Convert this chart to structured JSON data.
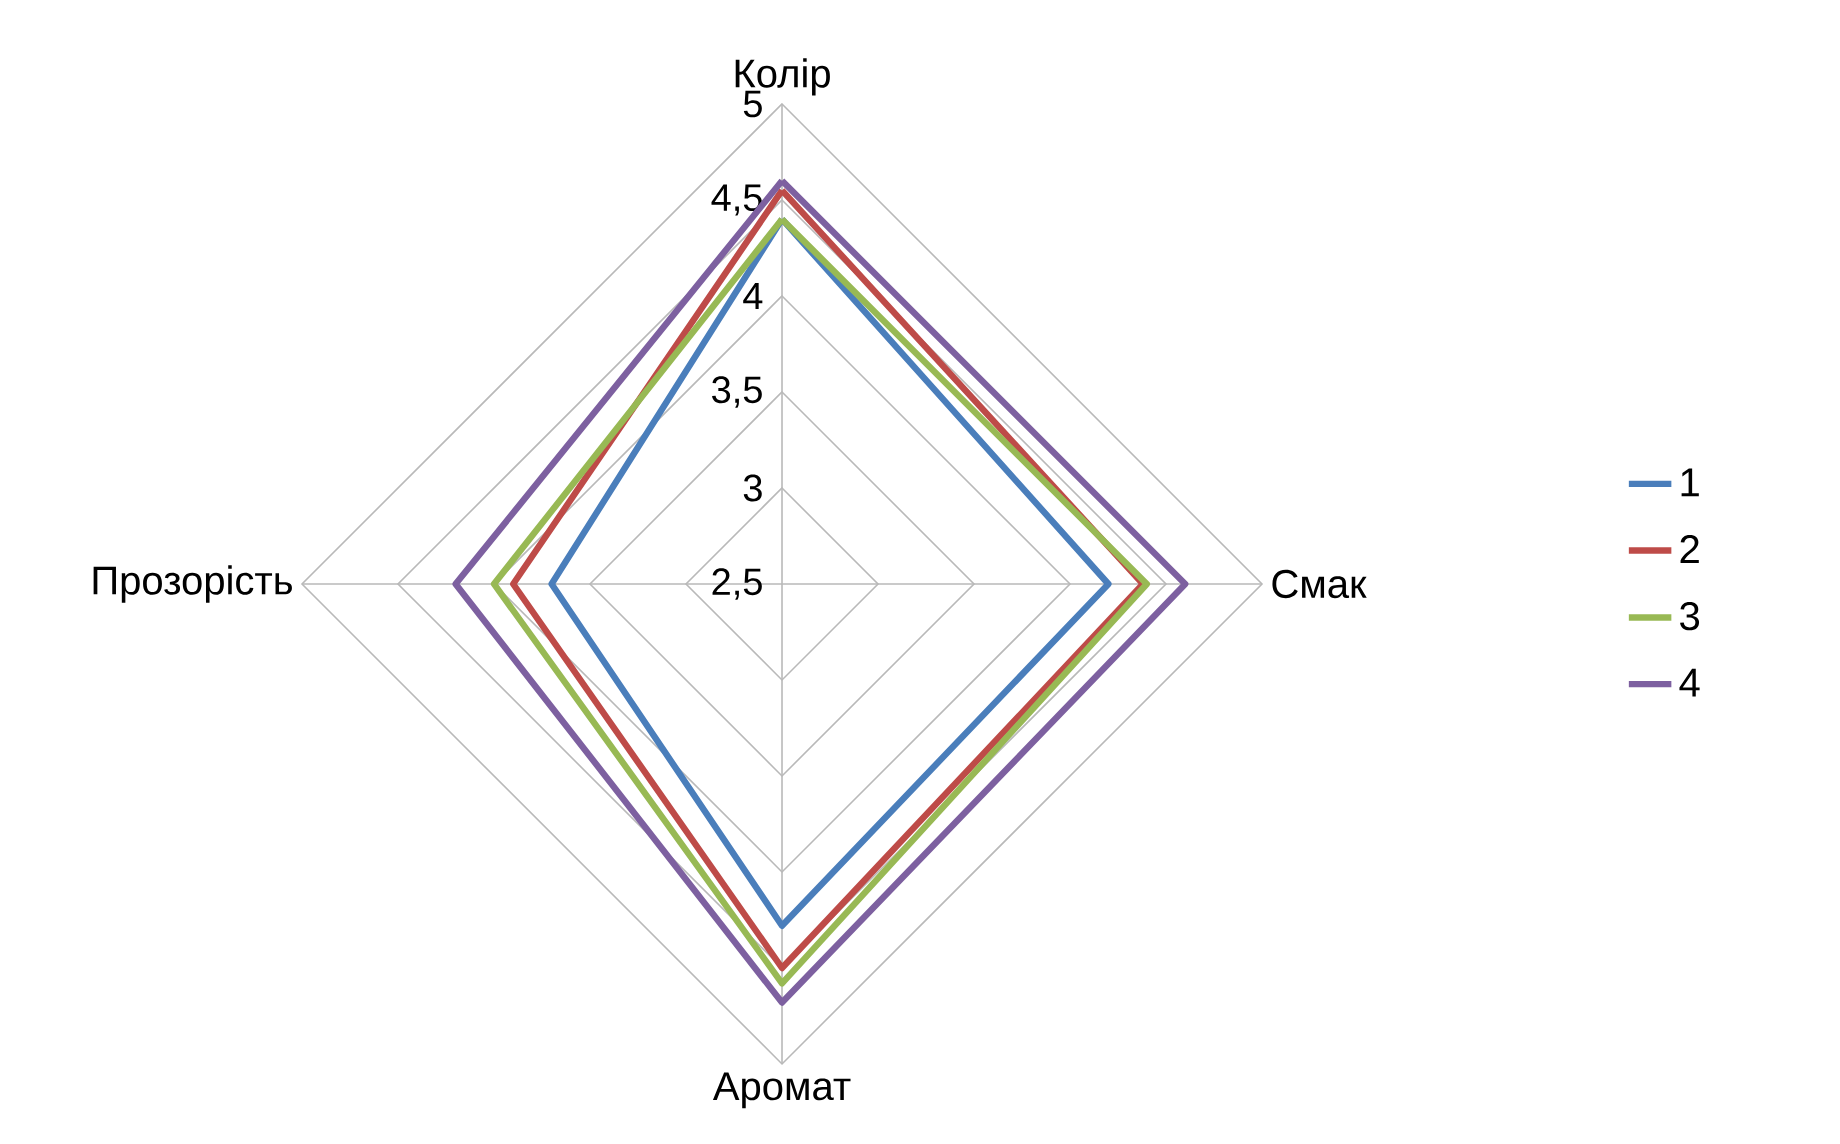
{
  "chart_data": {
    "type": "radar",
    "categories": [
      "Колір",
      "Смак",
      "Аромат",
      "Прозорість"
    ],
    "ylim": [
      2.5,
      5
    ],
    "yticks": [
      {
        "value": 2.5,
        "label": "2,5"
      },
      3,
      {
        "value": 3.5,
        "label": "3,5"
      },
      4,
      {
        "value": 4.5,
        "label": "4,5"
      },
      5
    ],
    "grid": true,
    "legend": "right",
    "series": [
      {
        "name": "1",
        "color": "#4a7ebb",
        "values": [
          4.4,
          4.2,
          4.28,
          3.7
        ]
      },
      {
        "name": "2",
        "color": "#be4b48",
        "values": [
          4.55,
          4.38,
          4.5,
          3.9
        ]
      },
      {
        "name": "3",
        "color": "#98b954",
        "values": [
          4.4,
          4.4,
          4.58,
          4.0
        ]
      },
      {
        "name": "4",
        "color": "#7d60a0",
        "values": [
          4.6,
          4.6,
          4.68,
          4.2
        ]
      }
    ]
  }
}
